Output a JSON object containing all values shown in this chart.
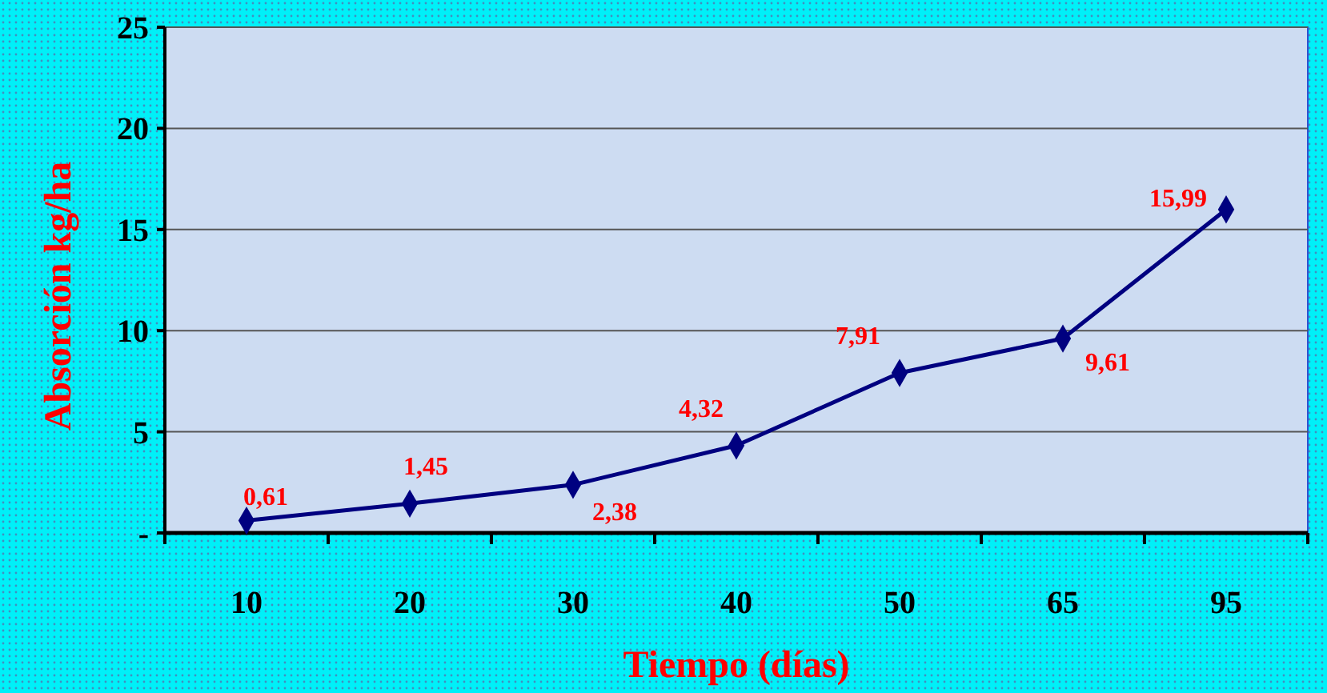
{
  "chart_data": {
    "type": "line",
    "xlabel": "Tiempo (días)",
    "ylabel": "Absorción kg/ha",
    "categories": [
      "10",
      "20",
      "30",
      "40",
      "50",
      "65",
      "95"
    ],
    "series": [
      {
        "color": "#000080",
        "values": [
          0.61,
          1.45,
          2.38,
          4.32,
          7.91,
          9.61,
          15.99
        ],
        "value_labels": [
          "0,61",
          "1,45",
          "2,38",
          "4,32",
          "7,91",
          "9,61",
          "15,99"
        ]
      }
    ],
    "ylim": [
      0,
      25
    ],
    "yticks": [
      {
        "value": 0,
        "label": "-"
      },
      5,
      10,
      15,
      20,
      25
    ],
    "grid": "y",
    "marker": "diamond",
    "line_style": "solid"
  }
}
